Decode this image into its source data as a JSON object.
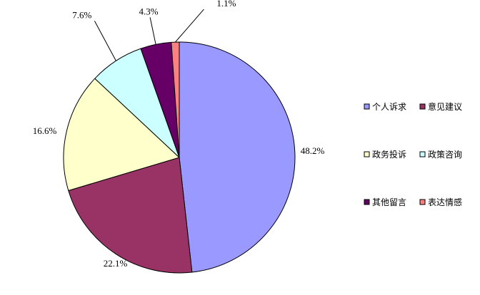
{
  "chart_data": {
    "type": "pie",
    "slices": [
      {
        "label": "个人诉求",
        "value": 48.2,
        "value_label": "48.2%",
        "color": "#9999FF"
      },
      {
        "label": "意见建议",
        "value": 22.1,
        "value_label": "22.1%",
        "color": "#993366"
      },
      {
        "label": "政务投诉",
        "value": 16.6,
        "value_label": "16.6%",
        "color": "#FFFFCC"
      },
      {
        "label": "政策咨询",
        "value": 7.6,
        "value_label": "7.6%",
        "color": "#CCFFFF"
      },
      {
        "label": "其他留言",
        "value": 4.3,
        "value_label": "4.3%",
        "color": "#660066"
      },
      {
        "label": "表达情感",
        "value": 1.1,
        "value_label": "1.1%",
        "color": "#FF8080"
      }
    ],
    "start_angle": "12 o'clock",
    "direction": "clockwise",
    "legend_position": "right",
    "legend_columns": 2
  }
}
